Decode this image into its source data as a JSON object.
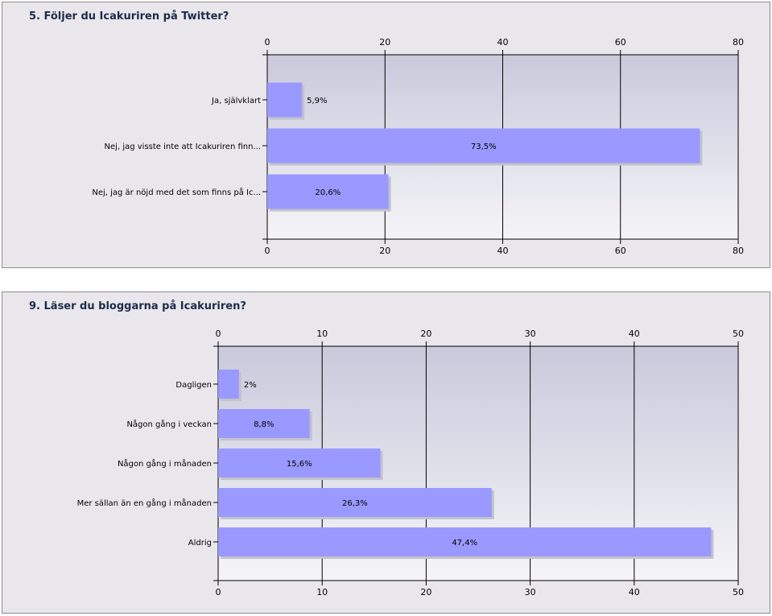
{
  "colors": {
    "bar": "#9999ff",
    "bar_shadow": "#c2c2cc",
    "plot_top": "#c9c9dc",
    "plot_bottom": "#f5f5f8",
    "grid": "#000000"
  },
  "chart_data": [
    {
      "type": "bar",
      "orientation": "horizontal",
      "title": "5. Följer du Icakuriren på Twitter?",
      "categories": [
        "Ja, självklart",
        "Nej, jag visste inte att Icakuriren finn...",
        "Nej, jag är nöjd med det som finns på Ic..."
      ],
      "values": [
        5.9,
        73.5,
        20.6
      ],
      "value_labels": [
        "5,9%",
        "73,5%",
        "20,6%"
      ],
      "xlim": [
        0,
        80
      ],
      "ticks": [
        0,
        20,
        40,
        60,
        80
      ],
      "tick_labels": [
        "0",
        "20",
        "40",
        "60",
        "80"
      ],
      "grid": true,
      "xlabel": "",
      "ylabel": ""
    },
    {
      "type": "bar",
      "orientation": "horizontal",
      "title": "9. Läser du bloggarna på Icakuriren?",
      "categories": [
        "Dagligen",
        "Någon gång i veckan",
        "Någon gång i månaden",
        "Mer sällan än en gång i månaden",
        "Aldrig"
      ],
      "values": [
        2,
        8.8,
        15.6,
        26.3,
        47.4
      ],
      "value_labels": [
        "2%",
        "8,8%",
        "15,6%",
        "26,3%",
        "47,4%"
      ],
      "xlim": [
        0,
        50
      ],
      "ticks": [
        0,
        10,
        20,
        30,
        40,
        50
      ],
      "tick_labels": [
        "0",
        "10",
        "20",
        "30",
        "40",
        "50"
      ],
      "grid": true,
      "xlabel": "",
      "ylabel": ""
    }
  ]
}
